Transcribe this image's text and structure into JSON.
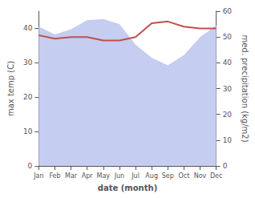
{
  "chart_data": {
    "type": "line",
    "categories": [
      "Jan",
      "Feb",
      "Mar",
      "Apr",
      "May",
      "Jun",
      "Jul",
      "Aug",
      "Sep",
      "Oct",
      "Nov",
      "Dec"
    ],
    "series": [
      {
        "type": "area",
        "color": "#c5cdf0",
        "axis": "y2",
        "values": [
          54.0,
          51.0,
          53.0,
          56.5,
          57.0,
          55.0,
          47.0,
          42.0,
          39.0,
          43.0,
          50.0,
          54.5
        ]
      },
      {
        "type": "line",
        "color": "#c0504d",
        "values": [
          38.0,
          37.0,
          37.5,
          37.5,
          36.5,
          36.5,
          37.5,
          41.5,
          42.0,
          40.5,
          40.0,
          40.0
        ]
      }
    ],
    "xlabel": "date (month)",
    "ylabel": "max temp (C)",
    "y2label": "med. precipitation (kg/m2)",
    "ylim": [
      0,
      45
    ],
    "yticks": [
      0,
      10,
      20,
      30,
      40
    ],
    "y2lim": [
      0,
      60
    ],
    "y2ticks": [
      0,
      10,
      20,
      30,
      40,
      50,
      60
    ],
    "grid": false
  }
}
